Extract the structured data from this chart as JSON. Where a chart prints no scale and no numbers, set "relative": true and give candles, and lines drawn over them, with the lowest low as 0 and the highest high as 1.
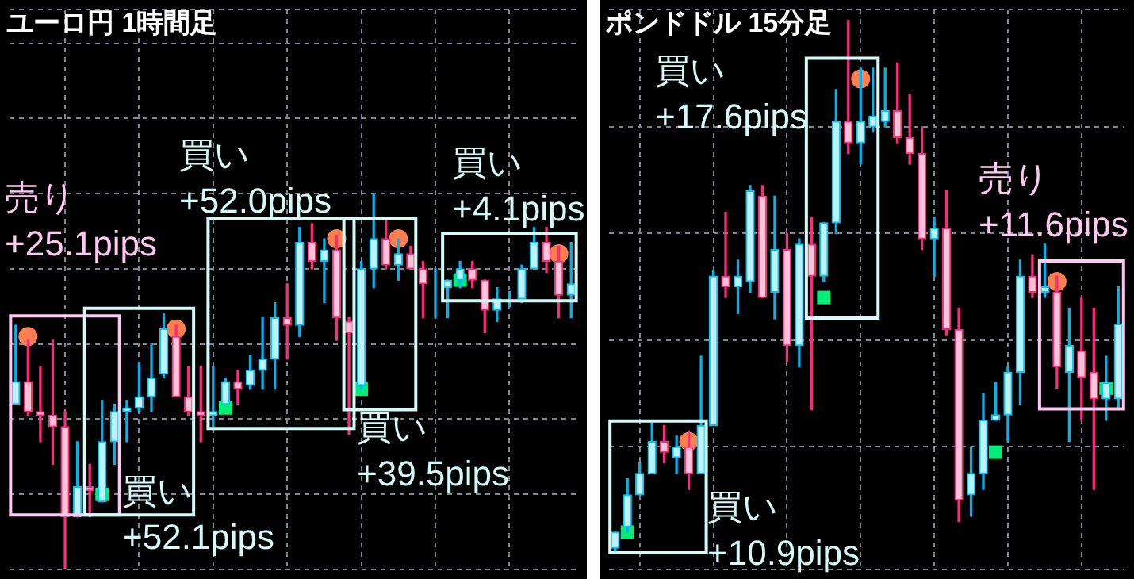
{
  "chart_data": [
    {
      "type": "candlestick",
      "title": "ユーロ円 1時間足",
      "relative": true,
      "grid": true,
      "categories": [
        null,
        null,
        null,
        null,
        null,
        null,
        null,
        null,
        null,
        null,
        null,
        null,
        null,
        null,
        null,
        null,
        null,
        null,
        null,
        null,
        null,
        null,
        null,
        null,
        null,
        null,
        null,
        null,
        null,
        null,
        null,
        null,
        null,
        null,
        null,
        null,
        null,
        null,
        null,
        null,
        null,
        null,
        null,
        null,
        null,
        null
      ],
      "ohlc": [
        [
          0.44,
          0.65,
          0.44,
          0.5
        ],
        [
          0.5,
          0.61,
          0.41,
          0.42
        ],
        [
          0.42,
          0.54,
          0.34,
          0.41
        ],
        [
          0.41,
          0.61,
          0.28,
          0.38
        ],
        [
          0.38,
          0.42,
          0,
          0.14
        ],
        [
          0.14,
          0.34,
          0.14,
          0.22
        ],
        [
          0.22,
          0.28,
          0.14,
          0.21
        ],
        [
          0.18,
          0.45,
          0.18,
          0.34
        ],
        [
          0.34,
          0.44,
          0.28,
          0.42
        ],
        [
          0.42,
          0.45,
          0.34,
          0.43
        ],
        [
          0.43,
          0.55,
          0.42,
          0.46
        ],
        [
          0.46,
          0.6,
          0.42,
          0.51
        ],
        [
          0.52,
          0.68,
          0.51,
          0.64
        ],
        [
          0.62,
          0.65,
          0.46,
          0.46
        ],
        [
          0.46,
          0.54,
          0.41,
          0.42
        ],
        [
          0.42,
          0.54,
          0.34,
          0.41
        ],
        [
          0.41,
          0.54,
          0.37,
          0.42
        ],
        [
          0.44,
          0.51,
          0.44,
          0.5
        ],
        [
          0.5,
          0.53,
          0.44,
          0.48
        ],
        [
          0.49,
          0.57,
          0.48,
          0.53
        ],
        [
          0.53,
          0.67,
          0.48,
          0.56
        ],
        [
          0.56,
          0.71,
          0.48,
          0.67
        ],
        [
          0.67,
          0.76,
          0.56,
          0.65
        ],
        [
          0.65,
          0.91,
          0.62,
          0.87
        ],
        [
          0.87,
          0.92,
          0.8,
          0.82
        ],
        [
          0.82,
          0.88,
          0.71,
          0.85
        ],
        [
          0.85,
          0.89,
          0.61,
          0.67
        ],
        [
          0.66,
          0.67,
          0.36,
          0.63
        ],
        [
          0.49,
          0.82,
          0.48,
          0.8
        ],
        [
          0.8,
          1.0,
          0.75,
          0.88
        ],
        [
          0.88,
          0.93,
          0.8,
          0.81
        ],
        [
          0.81,
          0.88,
          0.77,
          0.84
        ],
        [
          0.84,
          0.86,
          0.8,
          0.8
        ],
        [
          0.8,
          0.82,
          0.67,
          0.76
        ],
        [
          0.76,
          0.8,
          0.67,
          0.76
        ],
        [
          0.75,
          0.77,
          0.67,
          0.77
        ],
        [
          0.77,
          0.82,
          0.75,
          0.8
        ],
        [
          0.8,
          0.82,
          0.75,
          0.77
        ],
        [
          0.77,
          0.77,
          0.63,
          0.69
        ],
        [
          0.69,
          0.75,
          0.66,
          0.72
        ],
        [
          0.72,
          0.74,
          0.7,
          0.72
        ],
        [
          0.72,
          0.81,
          0.71,
          0.8
        ],
        [
          0.8,
          0.91,
          0.8,
          0.87
        ],
        [
          0.87,
          0.91,
          0.79,
          0.82
        ],
        [
          0.82,
          0.86,
          0.67,
          0.73
        ],
        [
          0.73,
          0.87,
          0.67,
          0.76
        ]
      ],
      "series": [
        {
          "type": "scatter",
          "marker": "circle",
          "color": "#ff7f50",
          "values": [
            null,
            0.62,
            null,
            null,
            null,
            null,
            null,
            null,
            null,
            null,
            null,
            null,
            null,
            0.64,
            null,
            null,
            null,
            null,
            null,
            null,
            null,
            null,
            null,
            null,
            null,
            null,
            0.88,
            null,
            null,
            null,
            null,
            0.88,
            null,
            null,
            null,
            null,
            null,
            null,
            null,
            null,
            null,
            null,
            null,
            null,
            0.84,
            null
          ]
        },
        {
          "type": "scatter",
          "marker": "square",
          "color": "#00ee77",
          "values": [
            null,
            null,
            null,
            null,
            null,
            null,
            null,
            0.2,
            null,
            null,
            null,
            null,
            null,
            null,
            null,
            null,
            null,
            0.43,
            null,
            null,
            null,
            null,
            null,
            null,
            null,
            null,
            null,
            null,
            0.48,
            null,
            null,
            null,
            null,
            null,
            null,
            null,
            0.77,
            null,
            null,
            null,
            null,
            null,
            null,
            null,
            null,
            null
          ]
        }
      ],
      "annotations": [
        "売り\n+25.1pips",
        "買い\n+52.1pips",
        "買い\n+52.0pips",
        "買い\n+39.5pips",
        "買い\n+4.1pips"
      ]
    },
    {
      "type": "candlestick",
      "title": "ポンドドル 15分足",
      "relative": true,
      "grid": true,
      "categories": [
        null,
        null,
        null,
        null,
        null,
        null,
        null,
        null,
        null,
        null,
        null,
        null,
        null,
        null,
        null,
        null,
        null,
        null,
        null,
        null,
        null,
        null,
        null,
        null,
        null,
        null,
        null,
        null,
        null,
        null,
        null,
        null,
        null,
        null,
        null,
        null,
        null,
        null,
        null,
        null,
        null,
        null
      ],
      "ohlc": [
        [
          0.01,
          0.04,
          0,
          0.04
        ],
        [
          0.05,
          0.14,
          0.04,
          0.11
        ],
        [
          0.11,
          0.17,
          0.11,
          0.15
        ],
        [
          0.15,
          0.25,
          0.15,
          0.21
        ],
        [
          0.21,
          0.24,
          0.17,
          0.19
        ],
        [
          0.18,
          0.22,
          0.15,
          0.2
        ],
        [
          0.2,
          0.23,
          0.12,
          0.15
        ],
        [
          0.15,
          0.37,
          0.15,
          0.24
        ],
        [
          0.24,
          0.53,
          0.24,
          0.52
        ],
        [
          0.52,
          0.64,
          0.48,
          0.5
        ],
        [
          0.5,
          0.55,
          0.45,
          0.52
        ],
        [
          0.51,
          0.69,
          0.49,
          0.68
        ],
        [
          0.67,
          0.69,
          0.48,
          0.48
        ],
        [
          0.49,
          0.67,
          0.44,
          0.57
        ],
        [
          0.57,
          0.6,
          0.36,
          0.39
        ],
        [
          0.39,
          0.59,
          0.35,
          0.58
        ],
        [
          0.58,
          0.63,
          0.27,
          0.52
        ],
        [
          0.52,
          0.62,
          0.51,
          0.62
        ],
        [
          0.62,
          0.87,
          0.6,
          0.81
        ],
        [
          0.81,
          1.0,
          0.75,
          0.77
        ],
        [
          0.77,
          0.91,
          0.73,
          0.81
        ],
        [
          0.8,
          0.91,
          0.79,
          0.82
        ],
        [
          0.81,
          0.91,
          0.8,
          0.83
        ],
        [
          0.83,
          0.92,
          0.77,
          0.78
        ],
        [
          0.78,
          0.86,
          0.73,
          0.75
        ],
        [
          0.75,
          0.8,
          0.57,
          0.59
        ],
        [
          0.59,
          0.63,
          0.52,
          0.61
        ],
        [
          0.61,
          0.68,
          0.41,
          0.42
        ],
        [
          0.42,
          0.46,
          0.06,
          0.1
        ],
        [
          0.11,
          0.2,
          0.07,
          0.15
        ],
        [
          0.15,
          0.3,
          0.12,
          0.25
        ],
        [
          0.25,
          0.32,
          0.25,
          0.26
        ],
        [
          0.26,
          0.35,
          0.21,
          0.34
        ],
        [
          0.34,
          0.55,
          0.28,
          0.52
        ],
        [
          0.52,
          0.56,
          0.48,
          0.49
        ],
        [
          0.49,
          0.58,
          0.48,
          0.5
        ],
        [
          0.49,
          0.52,
          0.31,
          0.35
        ],
        [
          0.34,
          0.46,
          0.21,
          0.39
        ],
        [
          0.38,
          0.48,
          0.25,
          0.33
        ],
        [
          0.34,
          0.46,
          0.12,
          0.29
        ],
        [
          0.29,
          0.37,
          0.25,
          0.32
        ],
        [
          0.29,
          0.5,
          0.27,
          0.43
        ]
      ],
      "series": [
        {
          "type": "scatter",
          "marker": "circle",
          "color": "#ff7f50",
          "values": [
            null,
            null,
            null,
            null,
            null,
            null,
            0.21,
            null,
            null,
            null,
            null,
            null,
            null,
            null,
            null,
            null,
            null,
            null,
            null,
            null,
            0.89,
            null,
            null,
            null,
            null,
            null,
            null,
            null,
            null,
            null,
            null,
            null,
            null,
            null,
            null,
            null,
            0.51,
            null,
            null,
            null,
            null,
            null
          ]
        },
        {
          "type": "scatter",
          "marker": "square",
          "color": "#00ee77",
          "values": [
            null,
            0.04,
            null,
            null,
            null,
            null,
            null,
            null,
            null,
            null,
            null,
            null,
            null,
            null,
            null,
            null,
            null,
            0.48,
            null,
            null,
            null,
            null,
            null,
            null,
            null,
            null,
            null,
            null,
            null,
            null,
            null,
            0.19,
            null,
            null,
            null,
            null,
            null,
            null,
            null,
            null,
            0.31,
            null
          ]
        }
      ],
      "annotations": [
        "買い\n+17.6pips",
        "買い\n+10.9pips",
        "売り\n+11.6pips"
      ]
    }
  ]
}
